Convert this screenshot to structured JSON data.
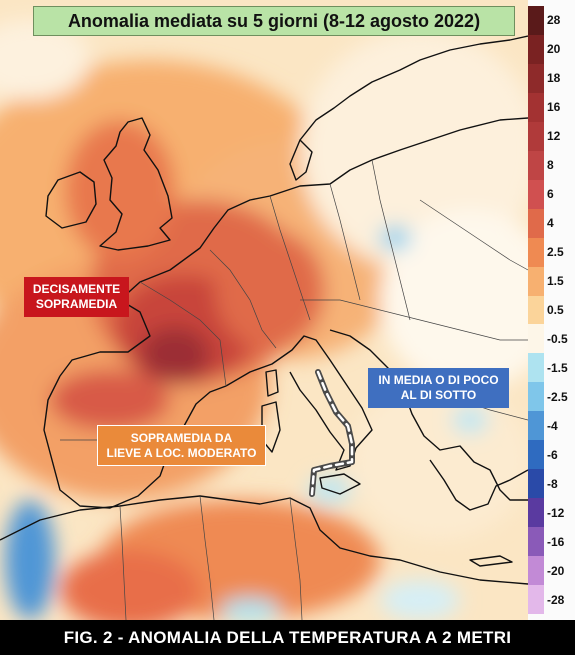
{
  "title": "Anomalia mediata su 5 giorni (8-12 agosto 2022)",
  "footer": "FIG. 2 - ANOMALIA DELLA TEMPERATURA A 2 METRI",
  "labels": {
    "above": {
      "line1": "DECISAMENTE",
      "line2": "SOPRAMEDIA",
      "color": "#c8161d"
    },
    "below": {
      "line1": "IN MEDIA O DI POCO",
      "line2": "AL DI SOTTO",
      "color": "#3f6fc0"
    },
    "mild": {
      "line1": "SOPRAMEDIA DA",
      "line2": "LIEVE A LOC. MODERATO",
      "color": "#ea8a3a"
    }
  },
  "legend": [
    {
      "label": "28",
      "color": "#5a1a1a"
    },
    {
      "label": "20",
      "color": "#7a2222"
    },
    {
      "label": "18",
      "color": "#8e2a2a"
    },
    {
      "label": "16",
      "color": "#a33232"
    },
    {
      "label": "12",
      "color": "#b03a3a"
    },
    {
      "label": "8",
      "color": "#bf4545"
    },
    {
      "label": "6",
      "color": "#d05050"
    },
    {
      "label": "4",
      "color": "#e06a4a"
    },
    {
      "label": "2.5",
      "color": "#ef8a52"
    },
    {
      "label": "1.5",
      "color": "#f7b070"
    },
    {
      "label": "0.5",
      "color": "#fbd49a"
    },
    {
      "label": "-0.5",
      "color": "#fdf6e8"
    },
    {
      "label": "-1.5",
      "color": "#aee3f0"
    },
    {
      "label": "-2.5",
      "color": "#7fc6ea"
    },
    {
      "label": "-4",
      "color": "#4f96d6"
    },
    {
      "label": "-6",
      "color": "#2f6bc0"
    },
    {
      "label": "-8",
      "color": "#2a4aa8"
    },
    {
      "label": "-12",
      "color": "#5a3aa0"
    },
    {
      "label": "-16",
      "color": "#8a5ab8"
    },
    {
      "label": "-20",
      "color": "#c28ad6"
    },
    {
      "label": "-28",
      "color": "#e3b8ea"
    }
  ]
}
